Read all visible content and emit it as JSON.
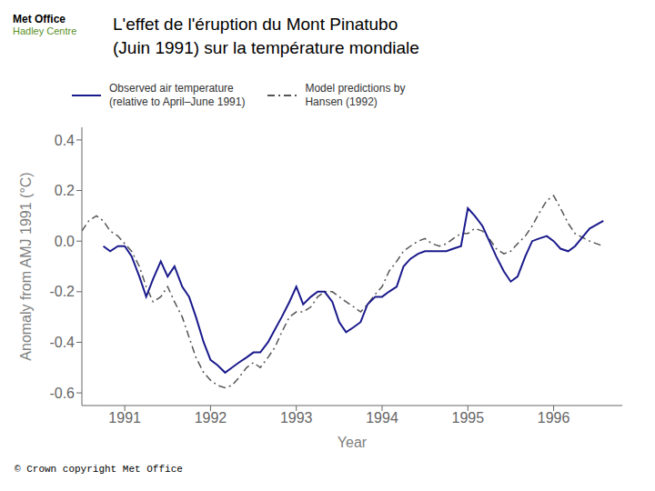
{
  "chart_data": {
    "type": "line",
    "title": "L'effet de l'éruption du Mont Pinatubo\n(Juin 1991) sur la température mondiale",
    "annotations": [
      "Met Office",
      "Hadley Centre",
      "© Crown copyright  Met Office"
    ],
    "xlabel": "Year",
    "ylabel": "Anomaly from AMJ 1991 (°C)",
    "xlim": [
      1990.5,
      1996.8
    ],
    "xticks": [
      1991,
      1992,
      1993,
      1994,
      1995,
      1996
    ],
    "ylim": [
      -0.65,
      0.45
    ],
    "yticks": [
      -0.6,
      -0.4,
      -0.2,
      {
        "value": 0,
        "label": "0.0"
      },
      0.2,
      0.4
    ],
    "grid": false,
    "legend": "upper left",
    "series": [
      {
        "name": "Observed air temperature\n(relative to April–June 1991)",
        "color": "#1a1a8c",
        "line_style": "solid",
        "x": [
          1990.75,
          1990.83,
          1990.92,
          1991.0,
          1991.08,
          1991.17,
          1991.25,
          1991.33,
          1991.42,
          1991.5,
          1991.58,
          1991.67,
          1991.75,
          1991.83,
          1991.92,
          1992.0,
          1992.08,
          1992.17,
          1992.25,
          1992.33,
          1992.42,
          1992.5,
          1992.58,
          1992.67,
          1992.75,
          1992.83,
          1992.92,
          1993.0,
          1993.08,
          1993.17,
          1993.25,
          1993.33,
          1993.42,
          1993.5,
          1993.58,
          1993.67,
          1993.75,
          1993.83,
          1993.92,
          1994.0,
          1994.08,
          1994.17,
          1994.25,
          1994.33,
          1994.42,
          1994.5,
          1994.58,
          1994.67,
          1994.75,
          1994.83,
          1994.92,
          1995.0,
          1995.08,
          1995.17,
          1995.25,
          1995.33,
          1995.42,
          1995.5,
          1995.58,
          1995.67,
          1995.75,
          1995.83,
          1995.92,
          1996.0,
          1996.08,
          1996.17,
          1996.25,
          1996.42,
          1996.58
        ],
        "values": [
          -0.02,
          -0.04,
          -0.02,
          -0.02,
          -0.06,
          -0.14,
          -0.22,
          -0.15,
          -0.08,
          -0.14,
          -0.1,
          -0.18,
          -0.22,
          -0.3,
          -0.4,
          -0.47,
          -0.49,
          -0.52,
          -0.5,
          -0.48,
          -0.46,
          -0.44,
          -0.44,
          -0.4,
          -0.35,
          -0.3,
          -0.24,
          -0.18,
          -0.25,
          -0.22,
          -0.2,
          -0.2,
          -0.24,
          -0.32,
          -0.36,
          -0.34,
          -0.32,
          -0.25,
          -0.22,
          -0.22,
          -0.2,
          -0.18,
          -0.1,
          -0.07,
          -0.05,
          -0.04,
          -0.04,
          -0.04,
          -0.04,
          -0.03,
          -0.02,
          0.13,
          0.1,
          0.06,
          0.0,
          -0.06,
          -0.12,
          -0.16,
          -0.14,
          -0.06,
          0.0,
          0.01,
          0.02,
          0.0,
          -0.03,
          -0.04,
          -0.02,
          0.05,
          0.08
        ]
      },
      {
        "name": "Model predictions by\nHansen (1992)",
        "color": "#555555",
        "line_style": "dashdot",
        "x": [
          1990.5,
          1990.58,
          1990.67,
          1990.75,
          1990.83,
          1990.92,
          1991.0,
          1991.08,
          1991.17,
          1991.25,
          1991.33,
          1991.42,
          1991.5,
          1991.58,
          1991.67,
          1991.75,
          1991.83,
          1991.92,
          1992.0,
          1992.08,
          1992.17,
          1992.25,
          1992.33,
          1992.42,
          1992.5,
          1992.58,
          1992.67,
          1992.75,
          1992.83,
          1992.92,
          1993.0,
          1993.08,
          1993.17,
          1993.25,
          1993.33,
          1993.42,
          1993.5,
          1993.58,
          1993.67,
          1993.75,
          1993.83,
          1993.92,
          1994.0,
          1994.08,
          1994.17,
          1994.25,
          1994.33,
          1994.42,
          1994.5,
          1994.58,
          1994.67,
          1994.75,
          1994.83,
          1994.92,
          1995.0,
          1995.08,
          1995.17,
          1995.25,
          1995.33,
          1995.42,
          1995.5,
          1995.58,
          1995.67,
          1995.75,
          1995.83,
          1995.92,
          1996.0,
          1996.08,
          1996.17,
          1996.25,
          1996.42,
          1996.58
        ],
        "values": [
          0.04,
          0.08,
          0.1,
          0.08,
          0.04,
          0.02,
          -0.01,
          -0.04,
          -0.1,
          -0.18,
          -0.24,
          -0.22,
          -0.18,
          -0.24,
          -0.3,
          -0.38,
          -0.46,
          -0.52,
          -0.55,
          -0.57,
          -0.58,
          -0.57,
          -0.54,
          -0.5,
          -0.48,
          -0.5,
          -0.46,
          -0.42,
          -0.36,
          -0.3,
          -0.28,
          -0.28,
          -0.26,
          -0.22,
          -0.2,
          -0.2,
          -0.22,
          -0.24,
          -0.26,
          -0.28,
          -0.25,
          -0.21,
          -0.18,
          -0.12,
          -0.08,
          -0.04,
          -0.02,
          0.0,
          0.01,
          -0.01,
          -0.02,
          -0.01,
          0.01,
          0.03,
          0.03,
          0.05,
          0.04,
          0.01,
          -0.03,
          -0.05,
          -0.04,
          -0.01,
          0.02,
          0.06,
          0.11,
          0.16,
          0.18,
          0.13,
          0.07,
          0.03,
          0.0,
          -0.02
        ]
      }
    ]
  }
}
